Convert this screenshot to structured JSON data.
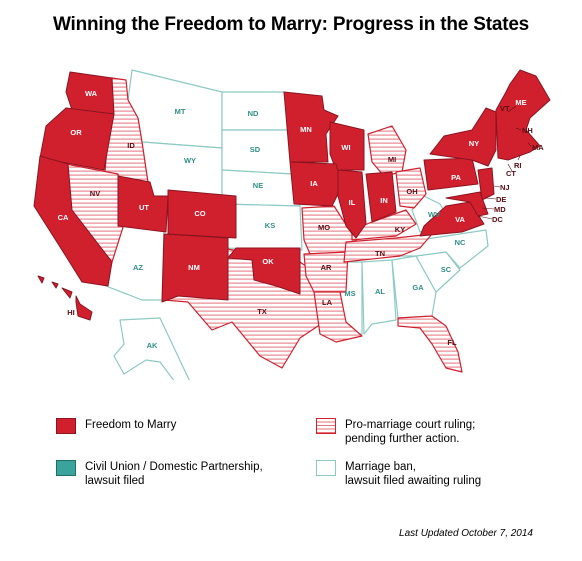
{
  "title": "Winning the Freedom to Marry: Progress in the States",
  "colors": {
    "freedom": "#d0202e",
    "civil_union": "#3aa39b",
    "court_ruling_stripe": "#e6737b",
    "ban_outline": "#8ccac4",
    "label_dark": "#5a0c12",
    "label_teal": "#2f8f88"
  },
  "legend": {
    "freedom": "Freedom to Marry",
    "civil_union_line1": "Civil Union / Domestic Partnership,",
    "civil_union_line2": "lawsuit filed",
    "court_ruling_line1": "Pro-marriage court ruling;",
    "court_ruling_line2": "pending further action.",
    "ban_line1": "Marriage ban,",
    "ban_line2": "lawsuit filed awaiting ruling"
  },
  "updated": "Last Updated October 7, 2014",
  "states": {
    "WA": "WA",
    "OR": "OR",
    "CA": "CA",
    "UT": "UT",
    "CO": "CO",
    "NM": "NM",
    "OK": "OK",
    "MN": "MN",
    "WI": "WI",
    "IA": "IA",
    "IL": "IL",
    "IN": "IN",
    "PA": "PA",
    "VA": "VA",
    "NY": "NY",
    "VT": "VT",
    "ME": "ME",
    "NH": "NH",
    "MA": "MA",
    "RI": "RI",
    "CT": "CT",
    "NJ": "NJ",
    "DE": "DE",
    "MD": "MD",
    "DC": "DC",
    "HI": "HI",
    "ID": "ID",
    "NV": "NV",
    "TX": "TX",
    "MO": "MO",
    "AR": "AR",
    "LA": "LA",
    "KY": "KY",
    "TN": "TN",
    "MI": "MI",
    "OH": "OH",
    "FL": "FL",
    "MT": "MT",
    "WY": "WY",
    "ND": "ND",
    "SD": "SD",
    "NE": "NE",
    "KS": "KS",
    "AZ": "AZ",
    "AK": "AK",
    "MS": "MS",
    "AL": "AL",
    "GA": "GA",
    "SC": "SC",
    "NC": "NC",
    "WV": "WV"
  }
}
